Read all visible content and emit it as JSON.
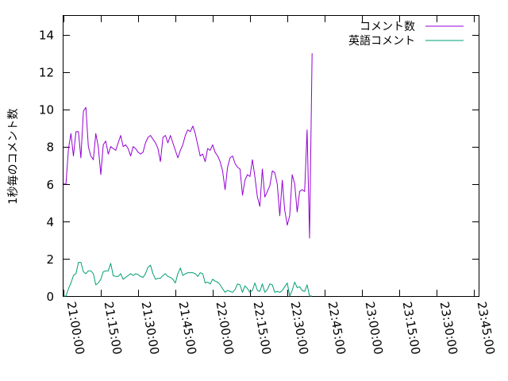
{
  "chart_data": {
    "type": "line",
    "title": "",
    "xlabel": "",
    "ylabel": "1秒毎のコメント数",
    "xlim": [
      "21:00:00",
      "23:47:00"
    ],
    "ylim": [
      0,
      15
    ],
    "y_ticks": [
      0,
      2,
      4,
      6,
      8,
      10,
      12,
      14
    ],
    "x_ticks": [
      "21:00:00",
      "21:15:00",
      "21:30:00",
      "21:45:00",
      "22:00:00",
      "22:15:00",
      "22:30:00",
      "22:45:00",
      "23:00:00",
      "23:15:00",
      "23:30:00",
      "23:45:00"
    ],
    "x_interval_minutes": 1,
    "grid": false,
    "legend_position": "top-right",
    "series": [
      {
        "name": "コメント数",
        "color": "#9400d3",
        "values": [
          6.0,
          6.0,
          7.9,
          8.7,
          7.5,
          8.8,
          8.8,
          7.4,
          9.9,
          10.1,
          8.0,
          7.5,
          7.3,
          8.7,
          8.0,
          6.5,
          8.1,
          8.3,
          7.6,
          8.0,
          7.9,
          7.8,
          8.2,
          8.6,
          8.0,
          8.1,
          7.9,
          7.5,
          8.0,
          7.9,
          7.7,
          7.6,
          7.7,
          8.2,
          8.5,
          8.6,
          8.4,
          8.2,
          7.9,
          7.2,
          8.5,
          8.6,
          8.2,
          8.6,
          8.2,
          7.8,
          7.4,
          7.8,
          8.1,
          8.6,
          8.9,
          8.8,
          9.1,
          8.7,
          8.1,
          7.5,
          7.6,
          7.2,
          7.9,
          7.8,
          8.1,
          7.7,
          7.5,
          7.2,
          6.7,
          5.7,
          6.9,
          7.4,
          7.5,
          7.1,
          6.9,
          6.8,
          5.4,
          6.2,
          6.5,
          6.4,
          7.3,
          6.4,
          5.3,
          4.8,
          6.8,
          5.3,
          5.6,
          5.9,
          6.7,
          6.6,
          6.0,
          4.3,
          6.2,
          4.6,
          3.8,
          4.3,
          6.5,
          6.0,
          4.5,
          5.6,
          5.7,
          5.6,
          8.9,
          3.1,
          13.0
        ]
      },
      {
        "name": "英語コメント",
        "color": "#009e73",
        "values": [
          0.0,
          0.0,
          0.4,
          0.7,
          1.1,
          1.2,
          1.8,
          1.8,
          1.3,
          1.2,
          1.35,
          1.35,
          1.2,
          0.6,
          0.7,
          0.9,
          1.3,
          1.35,
          1.35,
          1.75,
          1.1,
          1.05,
          1.05,
          1.2,
          0.9,
          1.0,
          1.1,
          1.2,
          1.1,
          1.2,
          1.15,
          1.05,
          1.0,
          1.2,
          1.55,
          1.65,
          1.2,
          0.9,
          0.95,
          0.95,
          1.1,
          1.2,
          1.05,
          1.0,
          0.9,
          0.7,
          1.2,
          1.5,
          1.1,
          1.2,
          1.25,
          1.25,
          1.25,
          1.2,
          1.05,
          1.25,
          1.2,
          0.7,
          0.75,
          0.65,
          0.9,
          0.8,
          0.75,
          0.6,
          0.4,
          0.2,
          0.3,
          0.25,
          0.2,
          0.35,
          0.65,
          0.6,
          0.2,
          0.55,
          0.4,
          0.2,
          0.3,
          0.7,
          0.3,
          0.25,
          0.65,
          0.2,
          0.35,
          0.65,
          0.6,
          0.2,
          0.25,
          0.2,
          0.3,
          0.5,
          0.7,
          0.0,
          0.3,
          0.75,
          0.45,
          0.5,
          0.3,
          0.25,
          0.6,
          0.0,
          0.0
        ]
      }
    ]
  }
}
